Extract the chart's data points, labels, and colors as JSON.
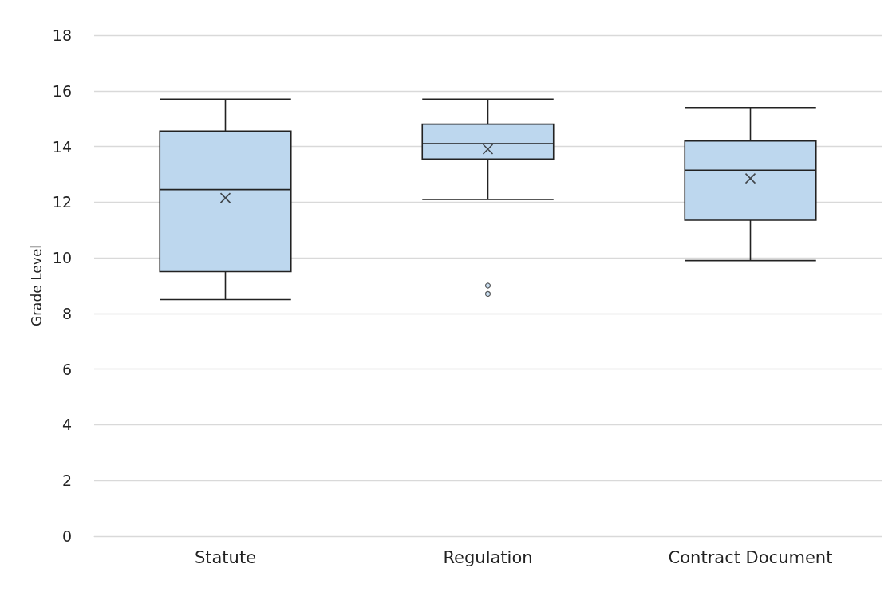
{
  "chart_data": {
    "type": "box",
    "ylabel": "Grade Level",
    "categories": [
      "Statute",
      "Regulation",
      "Contract Document"
    ],
    "color": "#bdd7ee",
    "boxes": [
      {
        "low": 8.5,
        "q1": 9.5,
        "median": 12.45,
        "q3": 14.55,
        "high": 15.7,
        "mean": 12.15
      },
      {
        "low": 12.1,
        "q1": 13.55,
        "median": 14.1,
        "q3": 14.8,
        "high": 15.7,
        "mean": 13.9,
        "outliers": [
          9.0,
          8.7
        ]
      },
      {
        "low": 9.9,
        "q1": 11.35,
        "median": 13.15,
        "q3": 14.2,
        "high": 15.4,
        "mean": 12.85
      }
    ],
    "ylim": [
      0,
      18
    ],
    "yticks": [
      0,
      2,
      4,
      6,
      8,
      10,
      12,
      14,
      16,
      18
    ],
    "grid": "y",
    "legend": false
  }
}
